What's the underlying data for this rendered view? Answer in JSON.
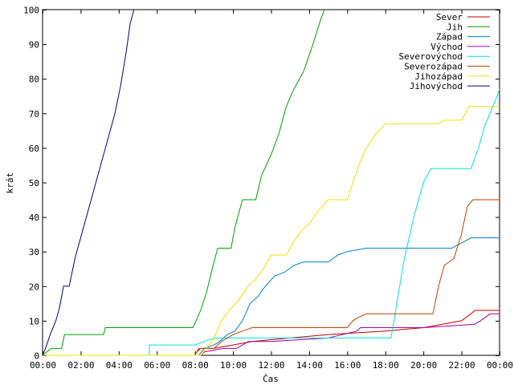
{
  "chart_data": {
    "type": "line",
    "xlabel": "Čas",
    "ylabel": "krát",
    "x_ticks": [
      "00:00",
      "02:00",
      "04:00",
      "06:00",
      "08:00",
      "10:00",
      "12:00",
      "14:00",
      "16:00",
      "18:00",
      "20:00",
      "22:00",
      "00:00"
    ],
    "y_ticks": [
      0,
      10,
      20,
      30,
      40,
      50,
      60,
      70,
      80,
      90,
      100
    ],
    "xlim": [
      0,
      24
    ],
    "ylim": [
      0,
      100
    ],
    "grid": false,
    "legend_position": "top-right",
    "series": [
      {
        "name": "Sever",
        "color": "#c00000",
        "points": [
          [
            0,
            0
          ],
          [
            8.0,
            0
          ],
          [
            8.1,
            1
          ],
          [
            8.3,
            2
          ],
          [
            9.0,
            2
          ],
          [
            10.0,
            3
          ],
          [
            11.0,
            4
          ],
          [
            13.0,
            5
          ],
          [
            15.0,
            6
          ],
          [
            18.0,
            7
          ],
          [
            20.0,
            8
          ],
          [
            21.0,
            9
          ],
          [
            22.0,
            10
          ],
          [
            22.5,
            12
          ],
          [
            22.7,
            13
          ],
          [
            24,
            13
          ]
        ]
      },
      {
        "name": "Jih",
        "color": "#00a000",
        "points": [
          [
            0,
            0
          ],
          [
            0.45,
            2
          ],
          [
            1.0,
            2
          ],
          [
            1.15,
            6
          ],
          [
            3.2,
            6
          ],
          [
            3.3,
            8
          ],
          [
            7.9,
            8
          ],
          [
            8.3,
            13
          ],
          [
            8.6,
            18
          ],
          [
            9.0,
            27
          ],
          [
            9.2,
            31
          ],
          [
            9.9,
            31
          ],
          [
            10.1,
            37
          ],
          [
            10.5,
            45
          ],
          [
            11.2,
            45
          ],
          [
            11.5,
            52
          ],
          [
            12.0,
            58
          ],
          [
            12.4,
            64
          ],
          [
            12.8,
            72
          ],
          [
            13.2,
            77
          ],
          [
            13.7,
            82
          ],
          [
            14.2,
            90
          ],
          [
            14.6,
            97
          ],
          [
            14.8,
            100
          ]
        ]
      },
      {
        "name": "Západ",
        "color": "#0080c0",
        "points": [
          [
            0,
            0
          ],
          [
            8.2,
            0
          ],
          [
            8.5,
            2
          ],
          [
            9.0,
            3
          ],
          [
            9.3,
            4
          ],
          [
            9.7,
            6
          ],
          [
            10.1,
            7
          ],
          [
            10.5,
            10
          ],
          [
            10.9,
            15
          ],
          [
            11.3,
            17
          ],
          [
            11.7,
            20
          ],
          [
            12.2,
            23
          ],
          [
            12.7,
            24
          ],
          [
            13.2,
            26
          ],
          [
            13.7,
            27
          ],
          [
            15.0,
            27
          ],
          [
            15.5,
            29
          ],
          [
            16.0,
            30
          ],
          [
            17.0,
            31
          ],
          [
            21.5,
            31
          ],
          [
            22.5,
            34
          ],
          [
            24,
            34
          ]
        ]
      },
      {
        "name": "Východ",
        "color": "#a000a0",
        "points": [
          [
            0,
            0
          ],
          [
            8.3,
            0
          ],
          [
            8.5,
            1
          ],
          [
            9.5,
            2
          ],
          [
            10.2,
            2
          ],
          [
            10.8,
            4
          ],
          [
            12.0,
            4
          ],
          [
            15.0,
            5
          ],
          [
            16.5,
            7
          ],
          [
            16.7,
            8
          ],
          [
            20.0,
            8
          ],
          [
            22.7,
            9
          ],
          [
            23.0,
            10
          ],
          [
            23.5,
            12
          ],
          [
            24,
            12
          ]
        ]
      },
      {
        "name": "Severovýchod",
        "color": "#00e0e0",
        "points": [
          [
            0,
            0
          ],
          [
            5.6,
            0
          ],
          [
            5.6,
            3
          ],
          [
            8.0,
            3
          ],
          [
            8.5,
            4
          ],
          [
            9.0,
            5
          ],
          [
            11.0,
            5
          ],
          [
            15.0,
            5
          ],
          [
            18.3,
            5
          ],
          [
            18.6,
            15
          ],
          [
            19.0,
            28
          ],
          [
            19.5,
            40
          ],
          [
            20.0,
            50
          ],
          [
            20.4,
            54
          ],
          [
            22.5,
            54
          ],
          [
            22.9,
            60
          ],
          [
            23.2,
            66
          ],
          [
            23.5,
            70
          ],
          [
            23.8,
            74
          ],
          [
            24,
            77
          ]
        ]
      },
      {
        "name": "Severozápad",
        "color": "#c04000",
        "points": [
          [
            0,
            0
          ],
          [
            8.0,
            0
          ],
          [
            8.2,
            2
          ],
          [
            9.0,
            2
          ],
          [
            9.4,
            4
          ],
          [
            10.0,
            6
          ],
          [
            10.5,
            7
          ],
          [
            11.0,
            8
          ],
          [
            16.0,
            8
          ],
          [
            16.3,
            10
          ],
          [
            16.6,
            11
          ],
          [
            17.0,
            12
          ],
          [
            20.5,
            12
          ],
          [
            20.8,
            20
          ],
          [
            21.1,
            26
          ],
          [
            21.6,
            28
          ],
          [
            22.0,
            35
          ],
          [
            22.3,
            43
          ],
          [
            22.6,
            45
          ],
          [
            24,
            45
          ]
        ]
      },
      {
        "name": "Jihozápad",
        "color": "#f0e000",
        "points": [
          [
            0,
            0
          ],
          [
            8.3,
            0
          ],
          [
            8.6,
            2
          ],
          [
            9.0,
            5
          ],
          [
            9.4,
            10
          ],
          [
            9.8,
            13
          ],
          [
            10.3,
            16
          ],
          [
            10.8,
            20
          ],
          [
            11.2,
            22
          ],
          [
            11.6,
            25
          ],
          [
            12.0,
            29
          ],
          [
            12.8,
            29
          ],
          [
            13.2,
            33
          ],
          [
            13.6,
            36
          ],
          [
            14.0,
            38
          ],
          [
            14.5,
            42
          ],
          [
            15.0,
            45
          ],
          [
            16.0,
            45
          ],
          [
            16.3,
            50
          ],
          [
            16.6,
            55
          ],
          [
            17.0,
            60
          ],
          [
            17.5,
            64
          ],
          [
            18.0,
            67
          ],
          [
            20.8,
            67
          ],
          [
            21.1,
            68
          ],
          [
            22.0,
            68
          ],
          [
            22.4,
            72
          ],
          [
            24,
            72
          ]
        ]
      },
      {
        "name": "Jihovýchod",
        "color": "#000080",
        "points": [
          [
            0,
            0
          ],
          [
            0.15,
            2
          ],
          [
            0.4,
            6
          ],
          [
            0.7,
            10
          ],
          [
            0.9,
            14
          ],
          [
            1.1,
            20
          ],
          [
            1.4,
            20
          ],
          [
            1.7,
            28
          ],
          [
            2.0,
            34
          ],
          [
            2.4,
            42
          ],
          [
            2.8,
            50
          ],
          [
            3.2,
            58
          ],
          [
            3.5,
            64
          ],
          [
            3.8,
            70
          ],
          [
            4.1,
            78
          ],
          [
            4.4,
            88
          ],
          [
            4.6,
            96
          ],
          [
            4.8,
            100
          ]
        ]
      }
    ]
  }
}
